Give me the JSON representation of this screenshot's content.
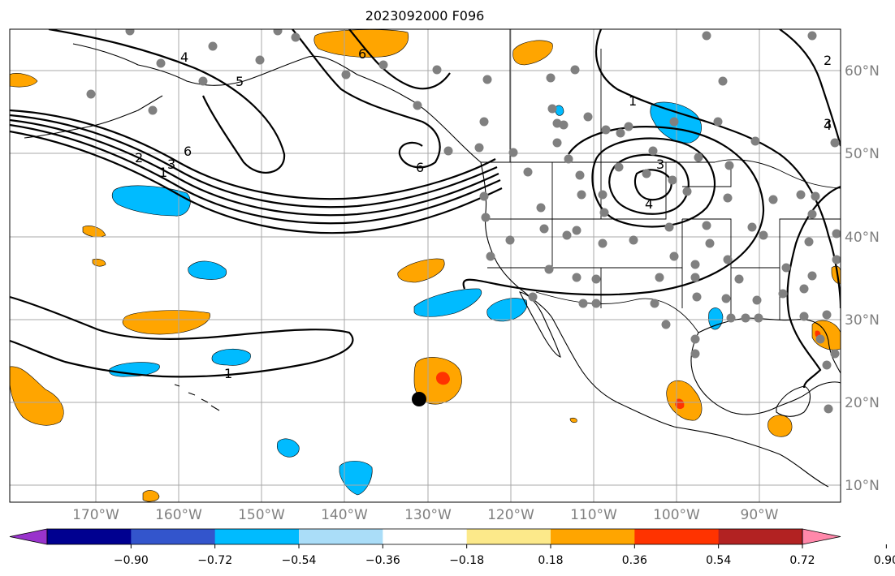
{
  "title": "2023092000 F096",
  "lon_labels": [
    "170°W",
    "160°W",
    "150°W",
    "140°W",
    "130°W",
    "120°W",
    "110°W",
    "100°W",
    "90°W"
  ],
  "lat_labels": [
    "60°N",
    "50°N",
    "40°N",
    "30°N",
    "20°N",
    "10°N"
  ],
  "contour_labels": [
    "4",
    "5",
    "6",
    "6",
    "6",
    "2",
    "3",
    "4",
    "1",
    "1",
    "3",
    "4",
    "1",
    "2",
    "3"
  ],
  "colorbar": {
    "ticks": [
      "−0.90",
      "−0.72",
      "−0.54",
      "−0.36",
      "−0.18",
      "0.18",
      "0.36",
      "0.54",
      "0.72",
      "0.90"
    ],
    "colors": [
      "#9933cc",
      "#000090",
      "#3355cc",
      "#00bbff",
      "#aaddf8",
      "#ffffff",
      "#fce98a",
      "#ffa500",
      "#ff3300",
      "#b22222",
      "#ff88aa"
    ]
  }
}
